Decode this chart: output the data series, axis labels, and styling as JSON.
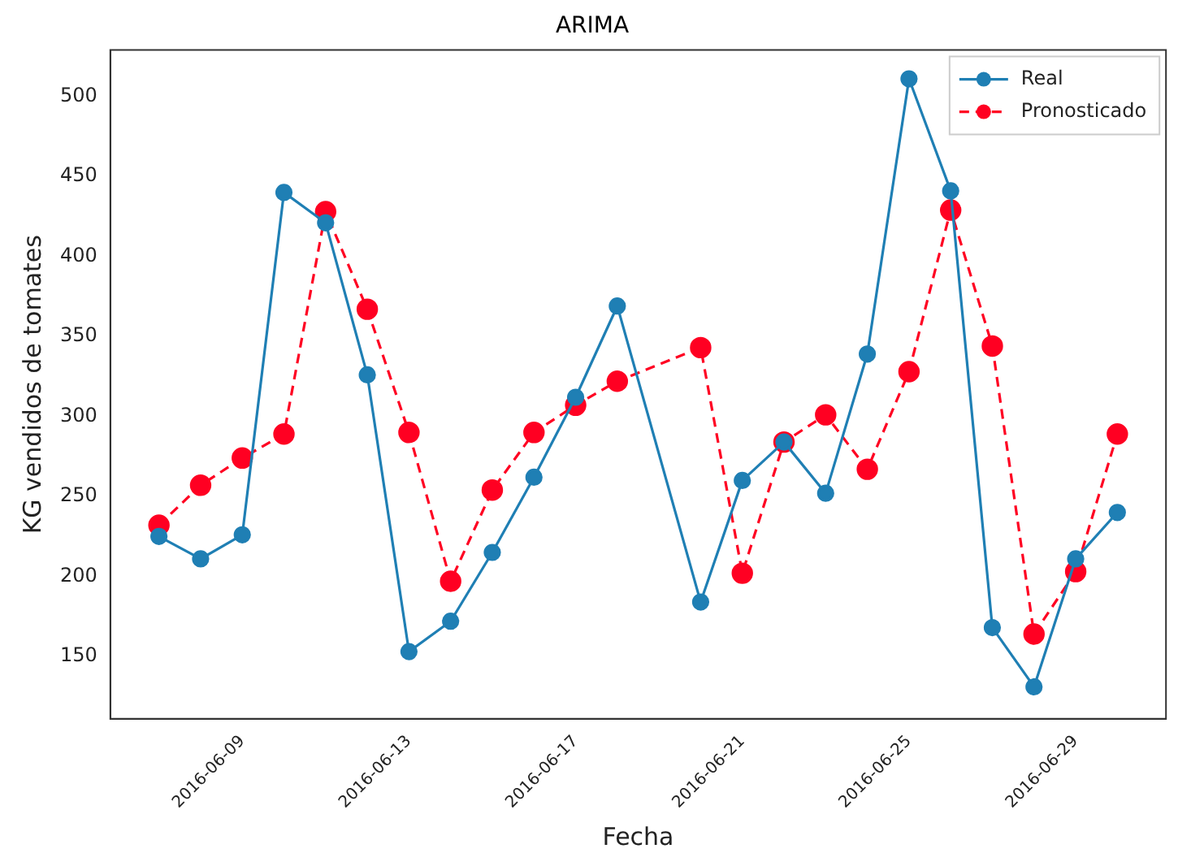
{
  "chart_data": {
    "type": "line",
    "title": "ARIMA",
    "xlabel": "Fecha",
    "ylabel": "KG vendidos de tomates",
    "x": [
      "2016-06-07",
      "2016-06-08",
      "2016-06-09",
      "2016-06-10",
      "2016-06-11",
      "2016-06-12",
      "2016-06-13",
      "2016-06-14",
      "2016-06-15",
      "2016-06-16",
      "2016-06-17",
      "2016-06-18",
      "2016-06-20",
      "2016-06-21",
      "2016-06-22",
      "2016-06-23",
      "2016-06-24",
      "2016-06-25",
      "2016-06-26",
      "2016-06-27",
      "2016-06-28",
      "2016-06-29",
      "2016-06-30"
    ],
    "series": [
      {
        "name": "Real",
        "color": "#1f7fb4",
        "line_style": "solid",
        "values": [
          225,
          211,
          226,
          440,
          421,
          326,
          153,
          172,
          215,
          262,
          312,
          369,
          184,
          260,
          284,
          252,
          339,
          511,
          441,
          168,
          131,
          211,
          240
        ]
      },
      {
        "name": "Pronosticado",
        "color": "#ff0022",
        "line_style": "dashed",
        "values": [
          232,
          257,
          274,
          289,
          428,
          367,
          290,
          197,
          254,
          290,
          307,
          322,
          343,
          202,
          284,
          301,
          267,
          328,
          429,
          344,
          164,
          203,
          289
        ]
      }
    ],
    "xlim": [
      "2016-06-05T20:00",
      "2016-07-01T04:00"
    ],
    "xticks": [
      "2016-06-09",
      "2016-06-13",
      "2016-06-17",
      "2016-06-21",
      "2016-06-25",
      "2016-06-29"
    ],
    "ylim": [
      111,
      529
    ],
    "yticks": [
      150,
      200,
      250,
      300,
      350,
      400,
      450,
      500
    ],
    "grid": false,
    "legend": "top right",
    "marker": "circle"
  }
}
